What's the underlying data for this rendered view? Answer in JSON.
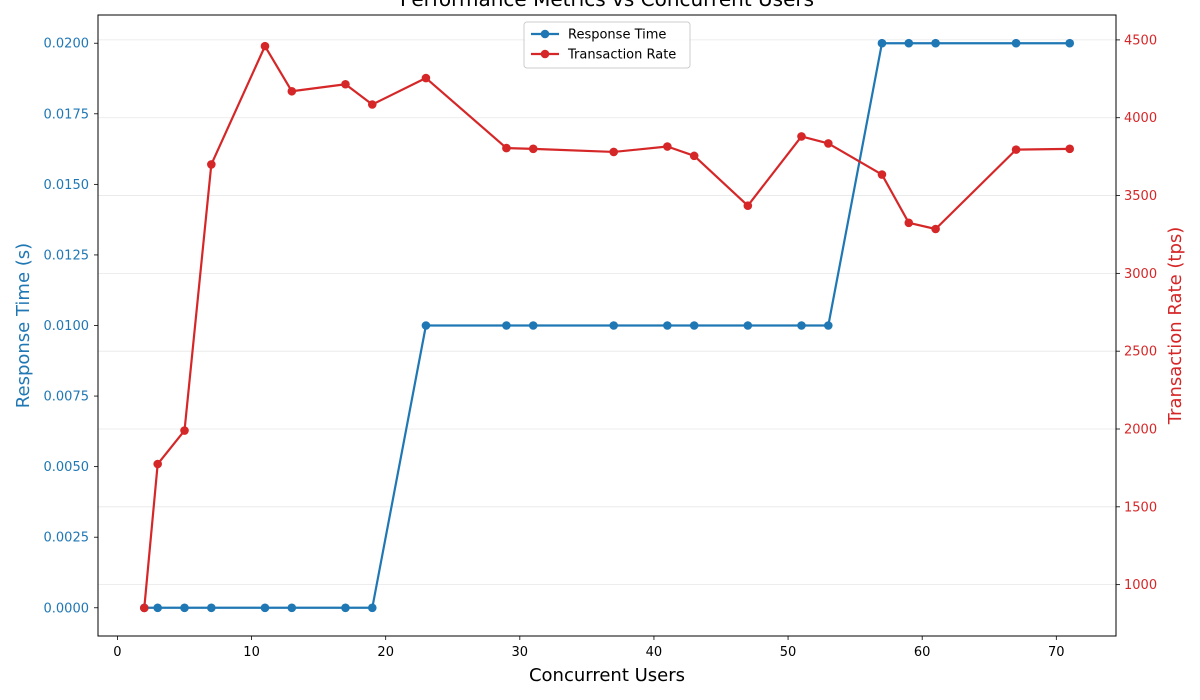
{
  "chart_data": {
    "type": "line",
    "title": "Performance Metrics vs Concurrent Users",
    "xlabel": "Concurrent Users",
    "ylabel_left": "Response Time (s)",
    "ylabel_right": "Transaction Rate (tps)",
    "xlim": [
      -1.45,
      74.45
    ],
    "ylim_left": [
      -0.001,
      0.021
    ],
    "ylim_right": [
      670,
      4660
    ],
    "x_ticks": [
      0,
      10,
      20,
      30,
      40,
      50,
      60,
      70
    ],
    "y_left_ticks": [
      0.0,
      0.0025,
      0.005,
      0.0075,
      0.01,
      0.0125,
      0.015,
      0.0175,
      0.02
    ],
    "y_left_tick_labels": [
      "0.0000",
      "0.0025",
      "0.0050",
      "0.0075",
      "0.0100",
      "0.0125",
      "0.0150",
      "0.0175",
      "0.0200"
    ],
    "y_right_ticks": [
      1000,
      1500,
      2000,
      2500,
      3000,
      3500,
      4000,
      4500
    ],
    "grid": true,
    "legend_position": "top-center",
    "series": [
      {
        "name": "Response Time",
        "axis": "left",
        "color": "#1f77b4",
        "x": [
          2,
          3,
          5,
          7,
          11,
          13,
          17,
          19,
          23,
          29,
          31,
          37,
          41,
          43,
          47,
          51,
          53,
          57,
          59,
          61,
          67,
          71
        ],
        "y": [
          0,
          0,
          0,
          0,
          0,
          0,
          0,
          0,
          0.01,
          0.01,
          0.01,
          0.01,
          0.01,
          0.01,
          0.01,
          0.01,
          0.01,
          0.02,
          0.02,
          0.02,
          0.02,
          0.02
        ]
      },
      {
        "name": "Transaction Rate",
        "axis": "right",
        "color": "#d62728",
        "x": [
          2,
          3,
          5,
          7,
          11,
          13,
          17,
          19,
          23,
          29,
          31,
          37,
          41,
          43,
          47,
          51,
          53,
          57,
          59,
          61,
          67,
          71
        ],
        "y": [
          850,
          1775,
          1990,
          3700,
          4460,
          4170,
          4215,
          4085,
          4255,
          3805,
          3800,
          3780,
          3815,
          3755,
          3435,
          3880,
          3835,
          3635,
          3325,
          3285,
          3795,
          3800
        ]
      }
    ]
  }
}
